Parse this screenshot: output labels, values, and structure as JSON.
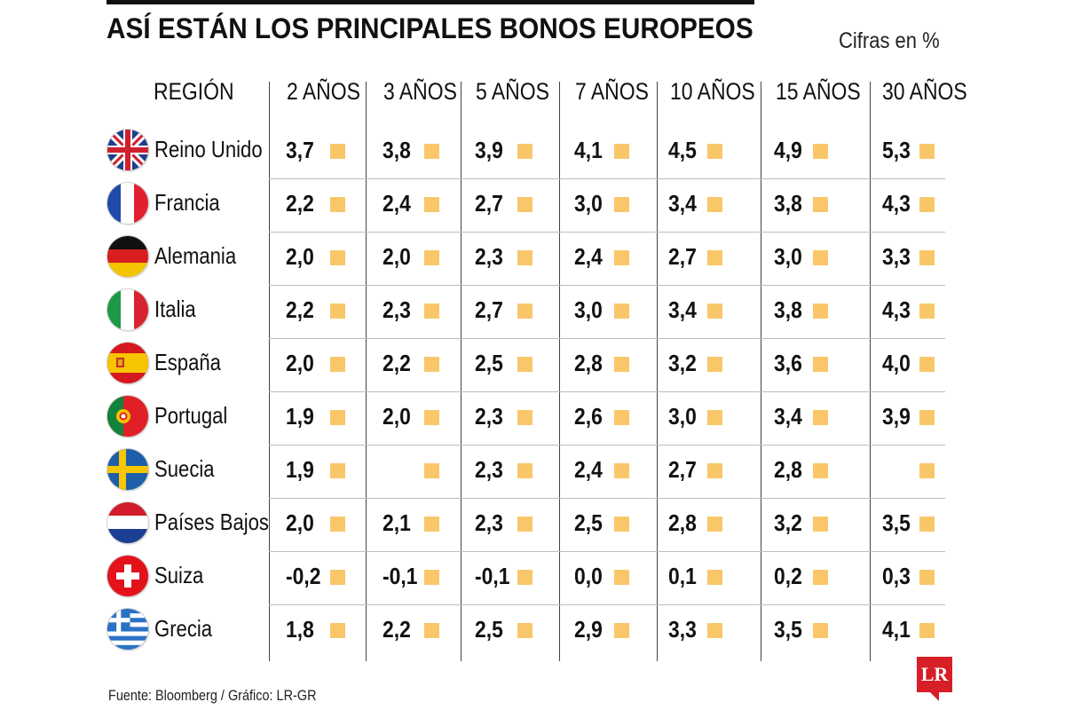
{
  "title": "ASÍ ESTÁN LOS PRINCIPALES BONOS EUROPEOS",
  "units_note": "Cifras en %",
  "source": "Fuente: Bloomberg / Gráfico: LR-GR",
  "logo_text": "LR",
  "colors": {
    "accent": "#F9C76A",
    "logo": "#D61F26",
    "rule": "#111111"
  },
  "chart_data": {
    "type": "table",
    "title": "ASÍ ESTÁN LOS PRINCIPALES BONOS EUROPEOS",
    "unit": "Cifras en %",
    "row_header": "REGIÓN",
    "columns": [
      "2 AÑOS",
      "3 AÑOS",
      "5 AÑOS",
      "7 AÑOS",
      "10 AÑOS",
      "15 AÑOS",
      "30 AÑOS"
    ],
    "rows": [
      {
        "region": "Reino Unido",
        "flag": "uk-flag-icon",
        "values": [
          "3,7",
          "3,8",
          "3,9",
          "4,1",
          "4,5",
          "4,9",
          "5,3"
        ]
      },
      {
        "region": "Francia",
        "flag": "france-flag-icon",
        "values": [
          "2,2",
          "2,4",
          "2,7",
          "3,0",
          "3,4",
          "3,8",
          "4,3"
        ]
      },
      {
        "region": "Alemania",
        "flag": "germany-flag-icon",
        "values": [
          "2,0",
          "2,0",
          "2,3",
          "2,4",
          "2,7",
          "3,0",
          "3,3"
        ]
      },
      {
        "region": "Italia",
        "flag": "italy-flag-icon",
        "values": [
          "2,2",
          "2,3",
          "2,7",
          "3,0",
          "3,4",
          "3,8",
          "4,3"
        ]
      },
      {
        "region": "España",
        "flag": "spain-flag-icon",
        "values": [
          "2,0",
          "2,2",
          "2,5",
          "2,8",
          "3,2",
          "3,6",
          "4,0"
        ]
      },
      {
        "region": "Portugal",
        "flag": "portugal-flag-icon",
        "values": [
          "1,9",
          "2,0",
          "2,3",
          "2,6",
          "3,0",
          "3,4",
          "3,9"
        ]
      },
      {
        "region": "Suecia",
        "flag": "sweden-flag-icon",
        "values": [
          "1,9",
          "",
          "2,3",
          "2,4",
          "2,7",
          "2,8",
          ""
        ]
      },
      {
        "region": "Países Bajos",
        "flag": "netherlands-flag-icon",
        "values": [
          "2,0",
          "2,1",
          "2,3",
          "2,5",
          "2,8",
          "3,2",
          "3,5"
        ]
      },
      {
        "region": "Suiza",
        "flag": "switzerland-flag-icon",
        "values": [
          "-0,2",
          "-0,1",
          "-0,1",
          "0,0",
          "0,1",
          "0,2",
          "0,3"
        ]
      },
      {
        "region": "Grecia",
        "flag": "greece-flag-icon",
        "values": [
          "1,8",
          "2,2",
          "2,5",
          "2,9",
          "3,3",
          "3,5",
          "4,1"
        ]
      }
    ]
  }
}
